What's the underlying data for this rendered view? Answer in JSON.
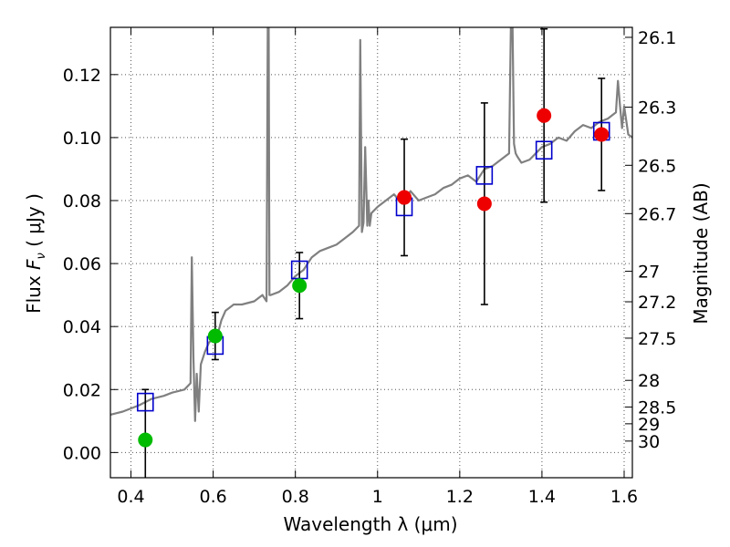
{
  "chart_data": {
    "type": "scatter",
    "xlabel": "Wavelength  λ (μm)",
    "ylabel": "Flux  F_ν  ( μJy )",
    "ylabel_parts": {
      "pre": "Flux ",
      "sym": "F",
      "sub": "ν",
      "post": "  ( μJy )"
    },
    "y2label": "Magnitude (AB)",
    "xlim": [
      0.35,
      1.62
    ],
    "ylim": [
      -0.008,
      0.135
    ],
    "grid": true,
    "x_ticks": [
      0.4,
      0.6,
      0.8,
      1.0,
      1.2,
      1.4,
      1.6
    ],
    "x_tick_labels": [
      "0.4",
      "0.6",
      "0.8",
      "1",
      "1.2",
      "1.4",
      "1.6"
    ],
    "y_ticks": [
      0.0,
      0.02,
      0.04,
      0.06,
      0.08,
      0.1,
      0.12
    ],
    "y_tick_labels": [
      "0.00",
      "0.02",
      "0.04",
      "0.06",
      "0.08",
      "0.10",
      "0.12"
    ],
    "mag_ticks": [
      {
        "mag": 26.1,
        "label": "26.1"
      },
      {
        "mag": 26.3,
        "label": "26.3"
      },
      {
        "mag": 26.5,
        "label": "26.5"
      },
      {
        "mag": 26.7,
        "label": "26.7"
      },
      {
        "mag": 27.0,
        "label": "27"
      },
      {
        "mag": 27.2,
        "label": "27.2"
      },
      {
        "mag": 27.5,
        "label": "27.5"
      },
      {
        "mag": 28.0,
        "label": "28"
      },
      {
        "mag": 28.5,
        "label": "28.5"
      },
      {
        "mag": 29.0,
        "label": "29"
      },
      {
        "mag": 30.0,
        "label": "30"
      }
    ],
    "spectrum": {
      "color": "#808080",
      "x": [
        0.35,
        0.38,
        0.4,
        0.42,
        0.45,
        0.48,
        0.5,
        0.53,
        0.545,
        0.548,
        0.552,
        0.556,
        0.56,
        0.565,
        0.57,
        0.58,
        0.59,
        0.6,
        0.61,
        0.62,
        0.63,
        0.65,
        0.67,
        0.7,
        0.72,
        0.73,
        0.733,
        0.735,
        0.737,
        0.74,
        0.76,
        0.78,
        0.8,
        0.82,
        0.84,
        0.86,
        0.88,
        0.9,
        0.92,
        0.94,
        0.955,
        0.958,
        0.962,
        0.966,
        0.97,
        0.975,
        0.978,
        0.981,
        0.985,
        1.0,
        1.02,
        1.04,
        1.06,
        1.08,
        1.1,
        1.12,
        1.14,
        1.16,
        1.18,
        1.2,
        1.22,
        1.24,
        1.26,
        1.28,
        1.3,
        1.32,
        1.325,
        1.328,
        1.332,
        1.336,
        1.34,
        1.35,
        1.37,
        1.4,
        1.42,
        1.44,
        1.46,
        1.48,
        1.5,
        1.52,
        1.54,
        1.56,
        1.58,
        1.585,
        1.59,
        1.595,
        1.6,
        1.61,
        1.62
      ],
      "y": [
        0.012,
        0.013,
        0.014,
        0.015,
        0.017,
        0.018,
        0.019,
        0.02,
        0.022,
        0.062,
        0.03,
        0.01,
        0.025,
        0.013,
        0.028,
        0.032,
        0.035,
        0.036,
        0.037,
        0.042,
        0.045,
        0.047,
        0.047,
        0.048,
        0.05,
        0.048,
        0.14,
        0.14,
        0.05,
        0.05,
        0.051,
        0.053,
        0.056,
        0.058,
        0.062,
        0.064,
        0.065,
        0.066,
        0.068,
        0.07,
        0.072,
        0.131,
        0.07,
        0.073,
        0.097,
        0.072,
        0.08,
        0.072,
        0.076,
        0.078,
        0.08,
        0.082,
        0.079,
        0.083,
        0.08,
        0.081,
        0.082,
        0.084,
        0.085,
        0.087,
        0.088,
        0.086,
        0.09,
        0.091,
        0.093,
        0.095,
        0.14,
        0.14,
        0.098,
        0.095,
        0.094,
        0.092,
        0.093,
        0.097,
        0.098,
        0.1,
        0.099,
        0.102,
        0.104,
        0.103,
        0.105,
        0.106,
        0.108,
        0.118,
        0.11,
        0.103,
        0.11,
        0.101,
        0.1
      ]
    },
    "boxes": {
      "color": "#0000cc",
      "x": [
        0.435,
        0.605,
        0.81,
        1.065,
        1.26,
        1.405,
        1.545
      ],
      "y": [
        0.016,
        0.034,
        0.058,
        0.078,
        0.088,
        0.096,
        0.102
      ]
    },
    "points": {
      "x": [
        0.435,
        0.605,
        0.81,
        1.065,
        1.26,
        1.405,
        1.545
      ],
      "y": [
        0.004,
        0.037,
        0.053,
        0.081,
        0.079,
        0.107,
        0.101
      ],
      "err": [
        0.016,
        0.0075,
        0.0105,
        0.0185,
        0.032,
        0.0275,
        0.0178
      ],
      "colors": [
        "#00bb00",
        "#00bb00",
        "#00bb00",
        "#ee0000",
        "#ee0000",
        "#ee0000",
        "#ee0000"
      ]
    }
  }
}
